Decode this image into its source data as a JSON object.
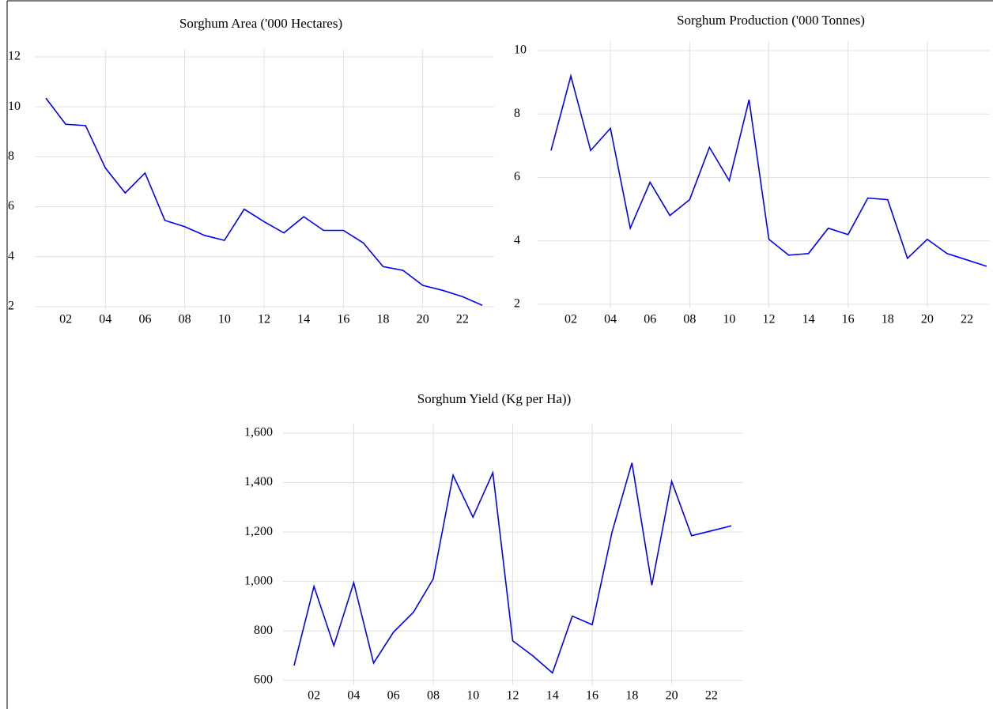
{
  "chart_data": [
    {
      "type": "line",
      "title": "Sorghum Area ('000 Hectares)",
      "categories": [
        null,
        "02",
        null,
        "04",
        null,
        "06",
        null,
        "08",
        null,
        "10",
        null,
        "12",
        null,
        "14",
        null,
        "16",
        null,
        "18",
        null,
        "20",
        null,
        "22",
        null
      ],
      "series": [
        {
          "color": "#0000ff",
          "values": [
            10.35,
            9.3,
            9.25,
            7.55,
            6.55,
            7.35,
            5.45,
            5.2,
            4.85,
            4.65,
            5.9,
            5.4,
            4.95,
            5.6,
            5.05,
            5.05,
            4.55,
            3.6,
            3.45,
            2.85,
            2.65,
            2.4,
            2.05
          ]
        }
      ],
      "ylim": [
        1.9,
        12.3
      ],
      "yticks": [
        2,
        4,
        6,
        8,
        10,
        12
      ],
      "grid": true
    },
    {
      "type": "line",
      "title": "Sorghum Production ('000 Tonnes)",
      "categories": [
        null,
        "02",
        null,
        "04",
        null,
        "06",
        null,
        "08",
        null,
        "10",
        null,
        "12",
        null,
        "14",
        null,
        "16",
        null,
        "18",
        null,
        "20",
        null,
        "22",
        null
      ],
      "series": [
        {
          "color": "#0000ff",
          "values": [
            6.85,
            9.2,
            6.85,
            7.55,
            4.4,
            5.85,
            4.8,
            5.3,
            6.95,
            5.9,
            8.45,
            4.05,
            3.55,
            3.6,
            4.4,
            4.2,
            5.35,
            5.3,
            3.45,
            4.05,
            3.6,
            3.4,
            3.2
          ]
        }
      ],
      "ylim": [
        1.9,
        10.3
      ],
      "yticks": [
        2,
        4,
        6,
        8,
        10
      ],
      "grid": true
    },
    {
      "type": "line",
      "title": "Sorghum Yield (Kg per Ha))",
      "categories": [
        null,
        "02",
        null,
        "04",
        null,
        "06",
        null,
        "08",
        null,
        "10",
        null,
        "12",
        null,
        "14",
        null,
        "16",
        null,
        "18",
        null,
        "20",
        null,
        "22",
        null
      ],
      "series": [
        {
          "color": "#0000ff",
          "values": [
            660,
            980,
            740,
            995,
            670,
            795,
            875,
            1010,
            1430,
            1260,
            1440,
            760,
            700,
            630,
            860,
            825,
            1200,
            1480,
            985,
            1405,
            1185,
            1205,
            1225
          ]
        }
      ],
      "ylim": [
        580,
        1640
      ],
      "yticks": [
        600,
        800,
        {
          "value": 1000,
          "label": "1,000"
        },
        {
          "value": 1200,
          "label": "1,200"
        },
        {
          "value": 1400,
          "label": "1,400"
        },
        {
          "value": 1600,
          "label": "1,600"
        }
      ],
      "grid": true
    }
  ]
}
